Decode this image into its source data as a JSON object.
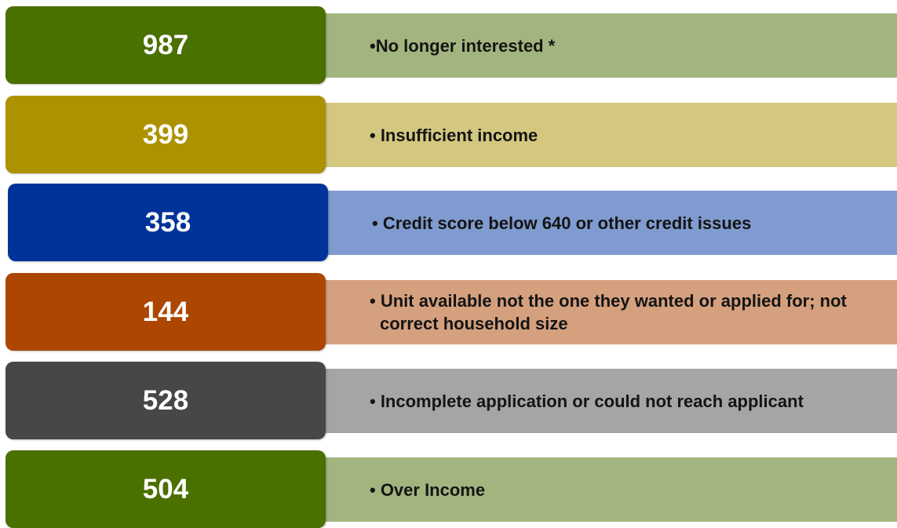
{
  "items": [
    {
      "value": 987,
      "label": "•No longer interested *",
      "color": "#4a7000",
      "light": "#a3b57e"
    },
    {
      "value": 399,
      "label": "• Insufficient income",
      "color": "#ad9200",
      "light": "#d4c77f"
    },
    {
      "value": 358,
      "label": "• Credit score below 640 or other credit issues",
      "color": "#00339a",
      "light": "#7f9bcf"
    },
    {
      "value": 144,
      "label": "• Unit available not the one they wanted or applied for; not correct household size",
      "color": "#ad4600",
      "light": "#d5a07e"
    },
    {
      "value": 528,
      "label": "• Incomplete application or could not reach applicant",
      "color": "#474747",
      "light": "#a5a5a5"
    },
    {
      "value": 504,
      "label": "• Over Income",
      "color": "#4a7000",
      "light": "#a3b57e"
    }
  ]
}
